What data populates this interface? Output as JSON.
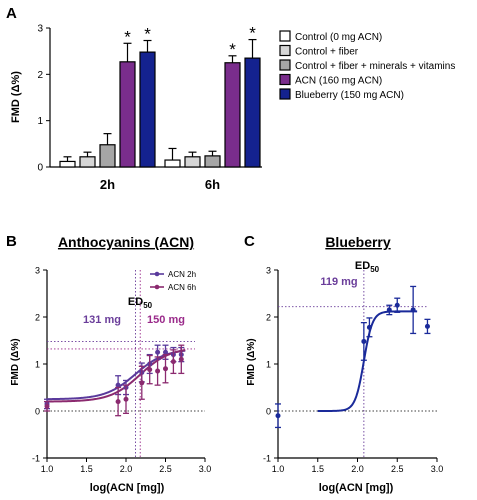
{
  "panels": {
    "A": {
      "letter": "A"
    },
    "B": {
      "letter": "B"
    },
    "C": {
      "letter": "C"
    }
  },
  "colors": {
    "control": "#ffffff",
    "control_fiber": "#d6d6d6",
    "control_fiber_minerals": "#a6a6a6",
    "acn": "#7a2d8c",
    "blueberry": "#14228f",
    "acn2h_line": "#5a3a9c",
    "acn6h_line": "#8b2a6f",
    "blueberry_line": "#1a2a9a",
    "ed50_purple": "#6a3d9a",
    "ed50_pink": "#9a2a8a"
  },
  "chart_data": [
    {
      "type": "bar",
      "panel": "A",
      "ylabel": "FMD (Δ%)",
      "ylim": [
        0,
        3
      ],
      "yticks": [
        "0",
        "1",
        "2",
        "3"
      ],
      "categories": [
        "2h",
        "6h"
      ],
      "series": [
        {
          "name": "Control (0 mg ACN)",
          "values": [
            0.12,
            0.15
          ],
          "errors": [
            0.1,
            0.25
          ],
          "color": "#ffffff"
        },
        {
          "name": "Control + fiber",
          "values": [
            0.22,
            0.22
          ],
          "errors": [
            0.1,
            0.1
          ],
          "color": "#d6d6d6"
        },
        {
          "name": "Control + fiber + minerals + vitamins",
          "values": [
            0.48,
            0.24
          ],
          "errors": [
            0.24,
            0.1
          ],
          "color": "#a6a6a6"
        },
        {
          "name": "ACN (160 mg ACN)",
          "values": [
            2.27,
            2.25
          ],
          "errors": [
            0.4,
            0.15
          ],
          "color": "#7a2d8c"
        },
        {
          "name": "Blueberry (150 mg ACN)",
          "values": [
            2.48,
            2.35
          ],
          "errors": [
            0.25,
            0.4
          ],
          "color": "#14228f"
        }
      ],
      "annotations": [
        "*",
        "*",
        "*",
        "*"
      ]
    },
    {
      "type": "line",
      "panel": "B",
      "title": "Anthocyanins (ACN)",
      "xlabel": "log(ACN [mg])",
      "ylabel": "FMD (Δ%)",
      "xlim": [
        1.0,
        3.0
      ],
      "ylim": [
        -1,
        3
      ],
      "xticks": [
        "1.0",
        "1.5",
        "2.0",
        "2.5",
        "3.0"
      ],
      "yticks": [
        "-1",
        "0",
        "1",
        "2",
        "3"
      ],
      "series": [
        {
          "name": "ACN 2h",
          "x": [
            1.0,
            1.9,
            2.0,
            2.2,
            2.3,
            2.4,
            2.5,
            2.6,
            2.7
          ],
          "y": [
            0.15,
            0.55,
            0.5,
            0.82,
            1.0,
            1.25,
            1.25,
            1.2,
            1.2
          ],
          "err": [
            0.1,
            0.2,
            0.15,
            0.2,
            0.2,
            0.15,
            0.15,
            0.15,
            0.15
          ],
          "color": "#5a3a9c"
        },
        {
          "name": "ACN 6h",
          "x": [
            1.0,
            1.9,
            2.0,
            2.2,
            2.3,
            2.4,
            2.5,
            2.6,
            2.7
          ],
          "y": [
            0.1,
            0.2,
            0.25,
            0.6,
            0.88,
            0.85,
            0.9,
            1.05,
            1.1
          ],
          "err": [
            0.1,
            0.3,
            0.3,
            0.35,
            0.3,
            0.3,
            0.3,
            0.25,
            0.3
          ],
          "color": "#8b2a6f"
        }
      ],
      "fit_curves": [
        {
          "name": "ACN 2h",
          "bottom": 0.25,
          "top": 1.32,
          "logEC50": 2.12,
          "hill": 2.3,
          "color": "#5a3a9c"
        },
        {
          "name": "ACN 6h",
          "bottom": 0.2,
          "top": 1.35,
          "logEC50": 2.18,
          "hill": 2.3,
          "color": "#8b2a6f"
        }
      ],
      "ed50": {
        "label": "ED",
        "subscript": "50",
        "values": [
          "131 mg",
          "150 mg"
        ],
        "x": [
          2.12,
          2.18
        ],
        "y": [
          1.48,
          1.32
        ]
      },
      "legend": "top-right"
    },
    {
      "type": "line",
      "panel": "C",
      "title": "Blueberry",
      "xlabel": "log(ACN [mg])",
      "ylabel": "FMD (Δ%)",
      "xlim": [
        1.0,
        3.0
      ],
      "ylim": [
        -1,
        3
      ],
      "xticks": [
        "1.0",
        "1.5",
        "2.0",
        "2.5",
        "3.0"
      ],
      "yticks": [
        "-1",
        "0",
        "1",
        "2",
        "3"
      ],
      "series": [
        {
          "name": "Blueberry",
          "x": [
            1.0,
            2.08,
            2.15,
            2.4,
            2.5,
            2.7,
            2.88
          ],
          "y": [
            -0.1,
            1.48,
            1.78,
            2.15,
            2.25,
            2.15,
            1.8
          ],
          "err": [
            0.25,
            0.4,
            0.2,
            0.1,
            0.15,
            0.5,
            0.15
          ],
          "color": "#1a2a9a"
        }
      ],
      "fit_curves": [
        {
          "name": "Blueberry",
          "bottom": 0.0,
          "top": 2.12,
          "logEC50": 2.08,
          "hill": 8,
          "color": "#1a2a9a"
        }
      ],
      "ed50": {
        "label": "ED",
        "subscript": "50",
        "values": [
          "119 mg"
        ],
        "x": [
          2.08
        ],
        "y": [
          2.22
        ]
      }
    }
  ]
}
